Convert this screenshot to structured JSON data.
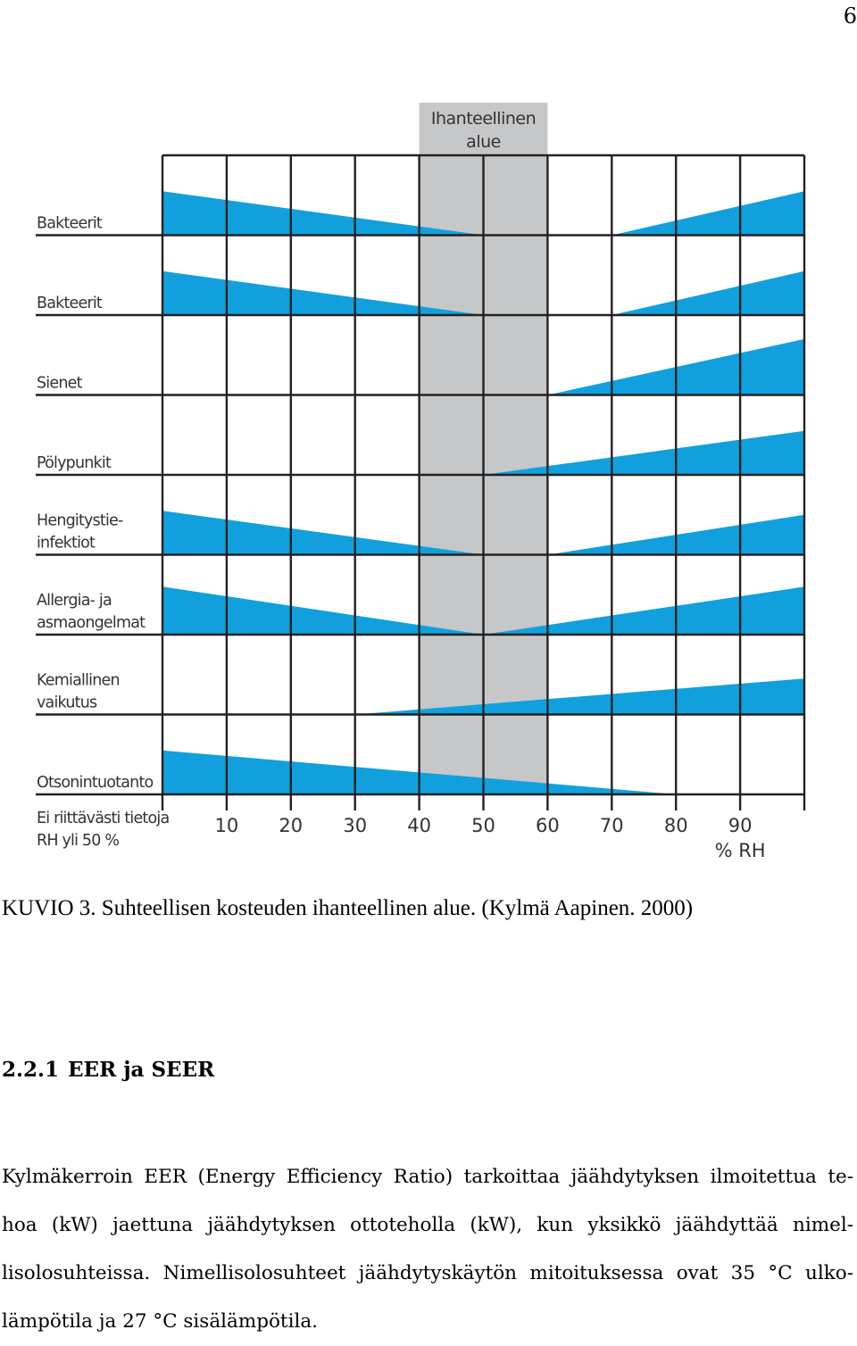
{
  "page": {
    "number": "6"
  },
  "figure": {
    "caption": "KUVIO 3. Suhteellisen kosteuden ihanteellinen alue. (Kylmä Aapinen. 2000)"
  },
  "chart_data": {
    "type": "area",
    "title": "",
    "ideal_zone": {
      "label_lines": [
        "Ihanteellinen",
        "alue"
      ],
      "x_range": [
        40,
        60
      ]
    },
    "no_data_label_lines": [
      "Ei riittävästi tietoja",
      "RH yli 50 %"
    ],
    "x_ticks": [
      10,
      20,
      30,
      40,
      50,
      60,
      70,
      80,
      90
    ],
    "x_unit_label": "% RH",
    "xlim": [
      0,
      100
    ],
    "ylim_per_row": [
      0,
      1
    ],
    "colors": {
      "wedge": "#11a0dd",
      "ideal_zone": "#c6c7c9",
      "grid": "#222222"
    },
    "rows": [
      {
        "label_lines": [
          "Bakteerit"
        ],
        "left": {
          "x_start": 0,
          "x_end": 50,
          "height": 0.55
        },
        "right": {
          "x_start": 70,
          "x_end": 100,
          "height": 0.55
        }
      },
      {
        "label_lines": [
          "Bakteerit"
        ],
        "left": {
          "x_start": 0,
          "x_end": 50,
          "height": 0.55
        },
        "right": {
          "x_start": 70,
          "x_end": 100,
          "height": 0.55
        }
      },
      {
        "label_lines": [
          "Sienet"
        ],
        "left": null,
        "right": {
          "x_start": 60,
          "x_end": 100,
          "height": 0.7
        }
      },
      {
        "label_lines": [
          "Pölypunkit"
        ],
        "left": null,
        "right": {
          "x_start": 50,
          "x_end": 100,
          "height": 0.55
        }
      },
      {
        "label_lines": [
          "Hengitystie-",
          "infektiot"
        ],
        "left": {
          "x_start": 0,
          "x_end": 50,
          "height": 0.55
        },
        "right": {
          "x_start": 60,
          "x_end": 100,
          "height": 0.5
        }
      },
      {
        "label_lines": [
          "Allergia- ja",
          "asmaongelmat"
        ],
        "left": {
          "x_start": 0,
          "x_end": 50,
          "height": 0.6
        },
        "right": {
          "x_start": 50,
          "x_end": 100,
          "height": 0.6
        }
      },
      {
        "label_lines": [
          "Kemiallinen",
          "vaikutus"
        ],
        "left": null,
        "right": {
          "x_start": 30,
          "x_end": 100,
          "height": 0.45
        }
      },
      {
        "label_lines": [
          "Otsonintuotanto"
        ],
        "left": {
          "x_start": 0,
          "x_end": 80,
          "height": 0.55
        },
        "right": null
      }
    ]
  },
  "section": {
    "number": "2.2.1",
    "title": "EER ja SEER"
  },
  "body": {
    "lines": [
      "Kylmäkerroin EER (Energy Efficiency Ratio) tarkoittaa jäähdytyksen ilmoitettua te-",
      "hoa (kW) jaettuna jäähdytyksen ottoteholla (kW), kun yksikkö jäähdyttää nimel-",
      "lisolosuhteissa. Nimellisolosuhteet jäähdytyskäytön mitoituksessa ovat 35 °C ulko-",
      "lämpötila ja 27 °C sisälämpötila."
    ]
  }
}
